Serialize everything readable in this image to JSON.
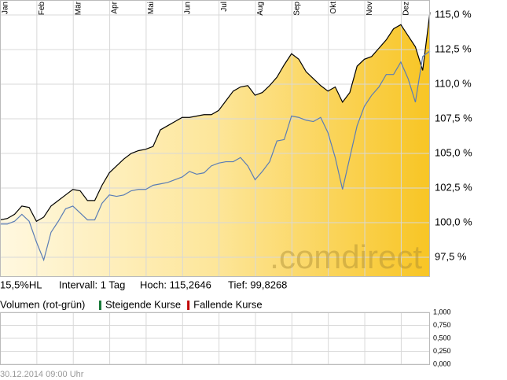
{
  "chart_data": [
    {
      "type": "line",
      "categories": [
        "Jan",
        null,
        null,
        null,
        null,
        "Feb",
        null,
        null,
        null,
        null,
        "Mär",
        null,
        null,
        null,
        null,
        "Apr",
        null,
        null,
        null,
        null,
        "Mai",
        null,
        null,
        null,
        null,
        "Jun",
        null,
        null,
        null,
        null,
        "Jul",
        null,
        null,
        null,
        null,
        "Aug",
        null,
        null,
        null,
        null,
        "Sep",
        null,
        null,
        null,
        null,
        "Okt",
        null,
        null,
        null,
        null,
        "Nov",
        null,
        null,
        null,
        null,
        "Dez",
        null,
        null,
        null,
        null
      ],
      "series": [
        {
          "color": "#000000",
          "fill": true,
          "values": [
            100.2,
            100.3,
            100.6,
            101.2,
            101.1,
            100.1,
            100.4,
            101.2,
            101.6,
            102.0,
            102.4,
            102.3,
            101.6,
            101.6,
            102.7,
            103.6,
            104.1,
            104.6,
            105.0,
            105.2,
            105.3,
            105.5,
            106.7,
            107.0,
            107.3,
            107.6,
            107.6,
            107.7,
            107.8,
            107.8,
            108.1,
            108.8,
            109.5,
            109.8,
            109.9,
            109.2,
            109.4,
            109.9,
            110.5,
            111.4,
            112.2,
            111.8,
            110.9,
            110.4,
            109.9,
            109.5,
            109.8,
            108.7,
            109.4,
            111.3,
            111.8,
            112.0,
            112.6,
            113.2,
            114.0,
            114.3,
            113.5,
            112.7,
            111.0,
            115.2
          ]
        },
        {
          "color": "#5b7db5",
          "values": [
            99.9,
            99.9,
            100.1,
            100.6,
            100.1,
            98.6,
            97.3,
            99.3,
            100.1,
            101.0,
            101.2,
            100.7,
            100.2,
            100.2,
            101.4,
            102.0,
            101.9,
            102.0,
            102.3,
            102.4,
            102.4,
            102.7,
            102.8,
            102.9,
            103.1,
            103.3,
            103.7,
            103.5,
            103.6,
            104.1,
            104.3,
            104.4,
            104.4,
            104.7,
            104.1,
            103.1,
            103.7,
            104.4,
            105.9,
            106.0,
            107.7,
            107.6,
            107.4,
            107.3,
            107.6,
            106.5,
            104.7,
            102.4,
            104.7,
            107.0,
            108.4,
            109.2,
            109.8,
            110.7,
            110.7,
            111.6,
            110.4,
            108.7,
            112.0,
            112.4
          ]
        }
      ],
      "ylim": [
        96.08,
        116.08
      ],
      "yticks": [
        {
          "value": 97.5,
          "label": "97,5 %"
        },
        {
          "value": 100,
          "label": "100,0 %"
        },
        {
          "value": 102.5,
          "label": "102,5 %"
        },
        {
          "value": 105,
          "label": "105,0 %"
        },
        {
          "value": 107.5,
          "label": "107,5 %"
        },
        {
          "value": 110,
          "label": "110,0 %"
        },
        {
          "value": 112.5,
          "label": "112,5 %"
        },
        {
          "value": 115,
          "label": "115,0 %"
        }
      ],
      "grid": true,
      "watermark": ".comdirect",
      "info": [
        "15,5%HL",
        "Intervall: 1 Tag",
        "Hoch: 115,2646",
        "Tief: 99,8268"
      ]
    },
    {
      "type": "bar",
      "title": "Volumen (rot-grün)",
      "legend": [
        {
          "name": "Steigende Kurse",
          "color": "#1a7a3a"
        },
        {
          "name": "Fallende Kurse",
          "color": "#c00000"
        }
      ],
      "ylim": [
        0,
        1
      ],
      "yticks": [
        {
          "value": 0,
          "label": "0,000"
        },
        {
          "value": 0.25,
          "label": "0,250"
        },
        {
          "value": 0.5,
          "label": "0,500"
        },
        {
          "value": 0.75,
          "label": "0,750"
        },
        {
          "value": 1,
          "label": "1,000"
        }
      ],
      "grid": true
    }
  ],
  "footer": "30.12.2014 09:00 Uhr"
}
